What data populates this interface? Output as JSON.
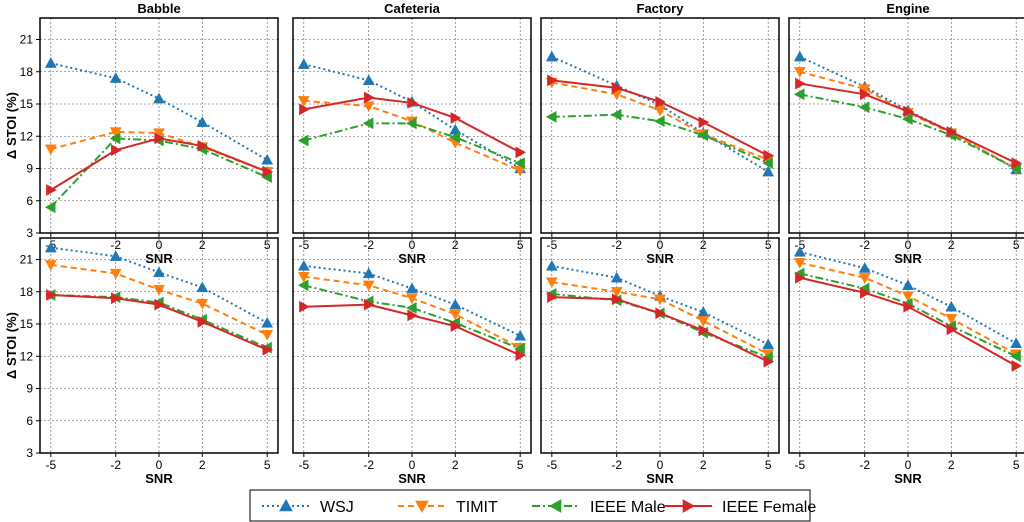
{
  "chart_data": {
    "type": "line",
    "ylabel": "Δ STOI (%)",
    "xlabel": "SNR",
    "x": [
      -5,
      -2,
      0,
      2,
      5
    ],
    "x_ticks": [
      "-5",
      "-2",
      "0",
      "2",
      "5"
    ],
    "y_ticks": [
      "3",
      "6",
      "9",
      "12",
      "15",
      "18",
      "21"
    ],
    "ylim": [
      3,
      23
    ],
    "grid": true,
    "legend_position": "bottom-center",
    "columns": [
      "Babble",
      "Cafeteria",
      "Factory",
      "Engine"
    ],
    "series_styles": [
      {
        "name": "WSJ",
        "color": "#1f77b4",
        "dash": "dotted",
        "marker": "triangle-up"
      },
      {
        "name": "TIMIT",
        "color": "#ff7f0e",
        "dash": "dashed",
        "marker": "triangle-down"
      },
      {
        "name": "IEEE Male",
        "color": "#2ca02c",
        "dash": "dashdot",
        "marker": "triangle-left"
      },
      {
        "name": "IEEE Female",
        "color": "#d62728",
        "dash": "solid",
        "marker": "triangle-right"
      }
    ],
    "rows": [
      [
        {
          "title": "Babble",
          "series": [
            {
              "name": "WSJ",
              "values": [
                18.8,
                17.4,
                15.5,
                13.3,
                9.8
              ]
            },
            {
              "name": "TIMIT",
              "values": [
                10.8,
                12.4,
                12.3,
                11.0,
                8.7
              ]
            },
            {
              "name": "IEEE Male",
              "values": [
                5.4,
                11.8,
                11.6,
                10.8,
                8.2
              ]
            },
            {
              "name": "IEEE Female",
              "values": [
                7.0,
                10.7,
                11.8,
                11.1,
                8.7
              ]
            }
          ]
        },
        {
          "title": "Cafeteria",
          "series": [
            {
              "name": "WSJ",
              "values": [
                18.7,
                17.2,
                15.2,
                12.6,
                9.0
              ]
            },
            {
              "name": "TIMIT",
              "values": [
                15.3,
                14.8,
                13.4,
                11.4,
                8.8
              ]
            },
            {
              "name": "IEEE Male",
              "values": [
                11.6,
                13.2,
                13.2,
                11.9,
                9.5
              ]
            },
            {
              "name": "IEEE Female",
              "values": [
                14.5,
                15.6,
                15.1,
                13.7,
                10.5
              ]
            }
          ]
        },
        {
          "title": "Factory",
          "series": [
            {
              "name": "WSJ",
              "values": [
                19.4,
                16.7,
                14.9,
                12.3,
                8.7
              ]
            },
            {
              "name": "TIMIT",
              "values": [
                17.0,
                15.9,
                14.4,
                12.2,
                9.8
              ]
            },
            {
              "name": "IEEE Male",
              "values": [
                13.8,
                14.0,
                13.4,
                12.1,
                9.5
              ]
            },
            {
              "name": "IEEE Female",
              "values": [
                17.2,
                16.5,
                15.2,
                13.3,
                10.2
              ]
            }
          ]
        },
        {
          "title": "Engine",
          "series": [
            {
              "name": "WSJ",
              "values": [
                19.4,
                16.6,
                14.4,
                12.4,
                8.9
              ]
            },
            {
              "name": "TIMIT",
              "values": [
                18.0,
                16.4,
                14.2,
                12.3,
                9.0
              ]
            },
            {
              "name": "IEEE Male",
              "values": [
                15.9,
                14.7,
                13.6,
                12.1,
                9.0
              ]
            },
            {
              "name": "IEEE Female",
              "values": [
                16.9,
                15.9,
                14.3,
                12.4,
                9.5
              ]
            }
          ]
        }
      ],
      [
        {
          "title": "",
          "series": [
            {
              "name": "WSJ",
              "values": [
                22.1,
                21.3,
                19.8,
                18.4,
                15.1
              ]
            },
            {
              "name": "TIMIT",
              "values": [
                20.5,
                19.7,
                18.2,
                16.9,
                14.0
              ]
            },
            {
              "name": "IEEE Male",
              "values": [
                17.7,
                17.5,
                17.0,
                15.4,
                12.8
              ]
            },
            {
              "name": "IEEE Female",
              "values": [
                17.7,
                17.4,
                16.8,
                15.2,
                12.6
              ]
            }
          ]
        },
        {
          "title": "",
          "series": [
            {
              "name": "WSJ",
              "values": [
                20.4,
                19.7,
                18.3,
                16.8,
                13.9
              ]
            },
            {
              "name": "TIMIT",
              "values": [
                19.4,
                18.6,
                17.4,
                15.9,
                12.8
              ]
            },
            {
              "name": "IEEE Male",
              "values": [
                18.6,
                17.1,
                16.5,
                15.1,
                12.7
              ]
            },
            {
              "name": "IEEE Female",
              "values": [
                16.6,
                16.8,
                15.8,
                14.8,
                12.1
              ]
            }
          ]
        },
        {
          "title": "",
          "series": [
            {
              "name": "WSJ",
              "values": [
                20.4,
                19.3,
                17.6,
                16.1,
                13.1
              ]
            },
            {
              "name": "TIMIT",
              "values": [
                18.9,
                18.0,
                17.3,
                15.3,
                12.2
              ]
            },
            {
              "name": "IEEE Male",
              "values": [
                17.8,
                17.2,
                16.0,
                14.2,
                11.9
              ]
            },
            {
              "name": "IEEE Female",
              "values": [
                17.5,
                17.3,
                16.0,
                14.4,
                11.5
              ]
            }
          ]
        },
        {
          "title": "",
          "series": [
            {
              "name": "WSJ",
              "values": [
                21.7,
                20.2,
                18.6,
                16.6,
                13.2
              ]
            },
            {
              "name": "TIMIT",
              "values": [
                20.7,
                19.3,
                17.6,
                15.5,
                12.2
              ]
            },
            {
              "name": "IEEE Male",
              "values": [
                19.7,
                18.3,
                16.9,
                14.8,
                12.0
              ]
            },
            {
              "name": "IEEE Female",
              "values": [
                19.3,
                17.9,
                16.6,
                14.5,
                11.1
              ]
            }
          ]
        }
      ]
    ]
  }
}
